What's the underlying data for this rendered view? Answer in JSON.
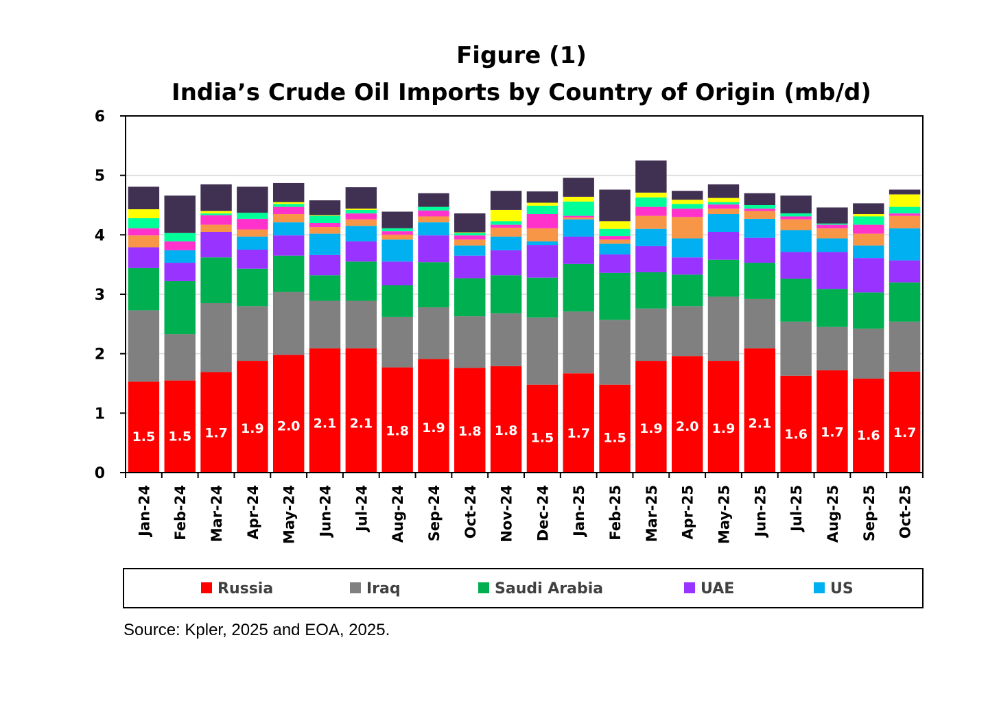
{
  "chart_data": {
    "type": "bar",
    "stacked": true,
    "title": "Figure (1)",
    "subtitle": "India’s Crude Oil Imports by Country of Origin (mb/d)",
    "source": "Source: Kpler, 2025 and EOA, 2025.",
    "ylim": [
      0,
      6
    ],
    "yticks": [
      "0",
      "1",
      "2",
      "3",
      "4",
      "5",
      "6"
    ],
    "grid": true,
    "legend_position": "bottom",
    "categories": [
      "Jan-24",
      "Feb-24",
      "Mar-24",
      "Apr-24",
      "May-24",
      "Jun-24",
      "Jul-24",
      "Aug-24",
      "Sep-24",
      "Oct-24",
      "Nov-24",
      "Dec-24",
      "Jan-25",
      "Feb-25",
      "Mar-25",
      "Apr-25",
      "May-25",
      "Jun-25",
      "Jul-25",
      "Aug-25",
      "Sep-25",
      "Oct-25"
    ],
    "series": [
      {
        "name": "Russia",
        "color": "#FF0000",
        "in_legend": true,
        "values": [
          1.53,
          1.55,
          1.69,
          1.88,
          1.98,
          2.09,
          2.09,
          1.77,
          1.91,
          1.76,
          1.79,
          1.48,
          1.67,
          1.48,
          1.88,
          1.96,
          1.88,
          2.09,
          1.63,
          1.72,
          1.58,
          1.7
        ],
        "labels": [
          "1.5",
          "1.5",
          "1.7",
          "1.9",
          "2.0",
          "2.1",
          "2.1",
          "1.8",
          "1.9",
          "1.8",
          "1.8",
          "1.5",
          "1.7",
          "1.5",
          "1.9",
          "2.0",
          "1.9",
          "2.1",
          "1.6",
          "1.7",
          "1.6",
          "1.7"
        ]
      },
      {
        "name": "Iraq",
        "color": "#808080",
        "in_legend": true,
        "values": [
          1.2,
          0.78,
          1.16,
          0.92,
          1.06,
          0.8,
          0.8,
          0.85,
          0.87,
          0.87,
          0.89,
          1.13,
          1.04,
          1.09,
          0.88,
          0.84,
          1.08,
          0.83,
          0.91,
          0.73,
          0.84,
          0.84
        ]
      },
      {
        "name": "Saudi Arabia",
        "color": "#00B050",
        "in_legend": true,
        "values": [
          0.71,
          0.89,
          0.77,
          0.63,
          0.61,
          0.43,
          0.66,
          0.53,
          0.76,
          0.64,
          0.64,
          0.67,
          0.8,
          0.79,
          0.61,
          0.53,
          0.62,
          0.61,
          0.72,
          0.64,
          0.61,
          0.66
        ]
      },
      {
        "name": "UAE",
        "color": "#9933FF",
        "in_legend": true,
        "values": [
          0.35,
          0.31,
          0.43,
          0.32,
          0.34,
          0.34,
          0.34,
          0.4,
          0.45,
          0.38,
          0.42,
          0.55,
          0.46,
          0.31,
          0.44,
          0.29,
          0.47,
          0.42,
          0.45,
          0.62,
          0.58,
          0.37
        ]
      },
      {
        "name": "US",
        "color": "#00B0F0",
        "in_legend": true,
        "values": [
          0.0,
          0.21,
          0.0,
          0.22,
          0.22,
          0.36,
          0.26,
          0.37,
          0.22,
          0.17,
          0.23,
          0.06,
          0.29,
          0.18,
          0.29,
          0.32,
          0.3,
          0.32,
          0.37,
          0.23,
          0.21,
          0.54
        ]
      },
      {
        "name": "",
        "color": "#F79646",
        "in_legend": false,
        "values": [
          0.2,
          0.0,
          0.12,
          0.12,
          0.14,
          0.11,
          0.11,
          0.08,
          0.1,
          0.1,
          0.15,
          0.22,
          0.03,
          0.07,
          0.22,
          0.36,
          0.09,
          0.13,
          0.18,
          0.17,
          0.2,
          0.21
        ]
      },
      {
        "name": "",
        "color": "#FF33CC",
        "in_legend": true,
        "values": [
          0.12,
          0.15,
          0.16,
          0.18,
          0.12,
          0.07,
          0.1,
          0.06,
          0.1,
          0.07,
          0.05,
          0.24,
          0.03,
          0.06,
          0.15,
          0.14,
          0.07,
          0.04,
          0.05,
          0.06,
          0.15,
          0.04
        ]
      },
      {
        "name": "",
        "color": "#00FF99",
        "in_legend": false,
        "values": [
          0.17,
          0.14,
          0.03,
          0.1,
          0.05,
          0.12,
          0.06,
          0.05,
          0.06,
          0.04,
          0.06,
          0.14,
          0.24,
          0.12,
          0.16,
          0.08,
          0.04,
          0.06,
          0.05,
          0.02,
          0.14,
          0.11
        ]
      },
      {
        "name": "",
        "color": "#FFFF00",
        "in_legend": false,
        "values": [
          0.15,
          0.0,
          0.04,
          0.0,
          0.03,
          0.01,
          0.02,
          0.0,
          0.0,
          0.01,
          0.19,
          0.05,
          0.08,
          0.13,
          0.08,
          0.07,
          0.07,
          0.0,
          0.0,
          0.0,
          0.04,
          0.21
        ]
      },
      {
        "name": "",
        "color": "#403152",
        "in_legend": false,
        "values": [
          0.38,
          0.63,
          0.45,
          0.44,
          0.32,
          0.25,
          0.36,
          0.28,
          0.23,
          0.32,
          0.32,
          0.19,
          0.32,
          0.53,
          0.54,
          0.15,
          0.23,
          0.2,
          0.3,
          0.27,
          0.18,
          0.08
        ]
      }
    ]
  }
}
